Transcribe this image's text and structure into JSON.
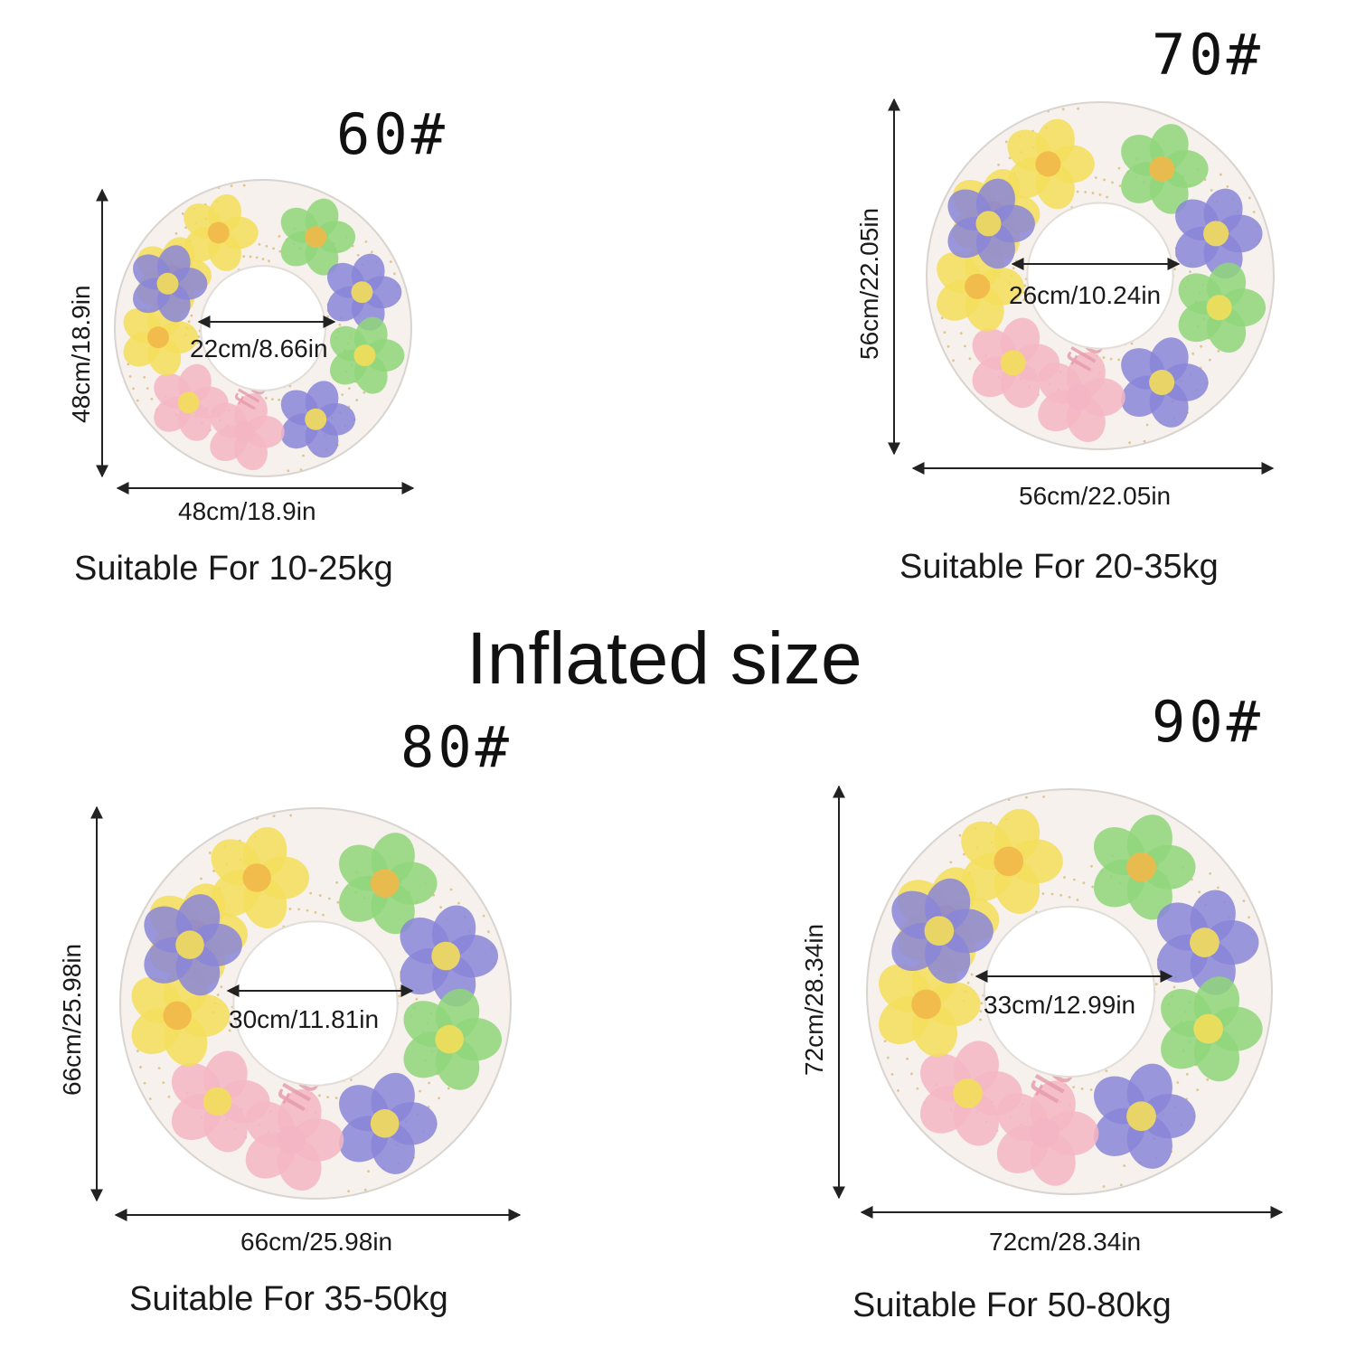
{
  "title": "Inflated size",
  "rings": [
    {
      "model": "60#",
      "height": "48cm/18.9in",
      "width": "48cm/18.9in",
      "inner": "22cm/8.66in",
      "suitable": "Suitable For 10-25kg",
      "brand_text": "flowers"
    },
    {
      "model": "70#",
      "height": "56cm/22.05in",
      "width": "56cm/22.05in",
      "inner": "26cm/10.24in",
      "suitable": "Suitable For 20-35kg",
      "brand_text": "flowers"
    },
    {
      "model": "80#",
      "height": "66cm/25.98in",
      "width": "66cm/25.98in",
      "inner": "30cm/11.81in",
      "suitable": "Suitable For 35-50kg",
      "brand_text": "flowers"
    },
    {
      "model": "90#",
      "height": "72cm/28.34in",
      "width": "72cm/28.34in",
      "inner": "33cm/12.99in",
      "suitable": "Suitable For 50-80kg",
      "brand_text": "flowers"
    }
  ],
  "colors": {
    "background": "#ffffff",
    "flower_yellow": "#f3de5a",
    "flower_purple": "#8a86d8",
    "flower_green": "#8fd67a",
    "flower_pink": "#f4b6c4",
    "flower_orange": "#f2b84a",
    "glitter": "#d6b46a",
    "arrow": "#222222"
  }
}
